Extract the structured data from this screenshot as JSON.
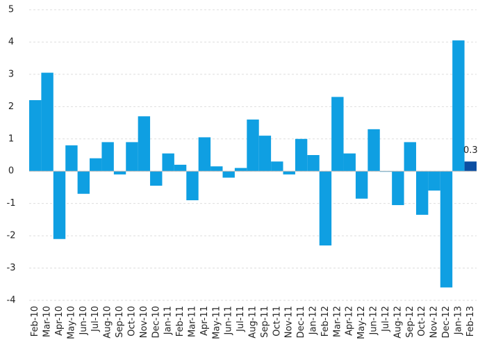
{
  "chart_data": {
    "type": "bar",
    "categories": [
      "Feb-10",
      "Mar-10",
      "Apr-10",
      "May-10",
      "Jun-10",
      "Jul-10",
      "Aug-10",
      "Sep-10",
      "Oct-10",
      "Nov-10",
      "Dec-10",
      "Jan-11",
      "Feb-11",
      "Mar-11",
      "Apr-11",
      "May-11",
      "Jun-11",
      "Jul-11",
      "Aug-11",
      "Sep-11",
      "Oct-11",
      "Nov-11",
      "Dec-11",
      "Jan-12",
      "Feb-12",
      "Mar-12",
      "Apr-12",
      "May-12",
      "Jun-12",
      "Jul-12",
      "Aug-12",
      "Sep-12",
      "Oct-12",
      "Nov-12",
      "Dec-12",
      "Jan-13",
      "Feb-13"
    ],
    "values": [
      2.2,
      3.05,
      -2.1,
      0.8,
      -0.7,
      0.4,
      0.9,
      -0.1,
      0.9,
      1.7,
      -0.45,
      0.55,
      0.2,
      -0.9,
      1.05,
      0.15,
      -0.2,
      0.1,
      1.6,
      1.1,
      0.3,
      -0.1,
      1.0,
      0.5,
      -2.3,
      2.3,
      0.55,
      -0.85,
      1.3,
      -0.02,
      -1.05,
      0.9,
      -1.35,
      -0.6,
      -3.6,
      4.05,
      0.3
    ],
    "value_labels": [
      null,
      null,
      null,
      null,
      null,
      null,
      null,
      null,
      null,
      null,
      null,
      null,
      null,
      null,
      null,
      null,
      null,
      null,
      null,
      null,
      null,
      null,
      null,
      null,
      null,
      null,
      null,
      null,
      null,
      null,
      null,
      null,
      null,
      null,
      null,
      null,
      "0.3"
    ],
    "colors": [
      "#0f9fe2",
      "#0f9fe2",
      "#0f9fe2",
      "#0f9fe2",
      "#0f9fe2",
      "#0f9fe2",
      "#0f9fe2",
      "#0f9fe2",
      "#0f9fe2",
      "#0f9fe2",
      "#0f9fe2",
      "#0f9fe2",
      "#0f9fe2",
      "#0f9fe2",
      "#0f9fe2",
      "#0f9fe2",
      "#0f9fe2",
      "#0f9fe2",
      "#0f9fe2",
      "#0f9fe2",
      "#0f9fe2",
      "#0f9fe2",
      "#0f9fe2",
      "#0f9fe2",
      "#0f9fe2",
      "#0f9fe2",
      "#0f9fe2",
      "#0f9fe2",
      "#0f9fe2",
      "#0f9fe2",
      "#0f9fe2",
      "#0f9fe2",
      "#0f9fe2",
      "#0f9fe2",
      "#0f9fe2",
      "#0f9fe2",
      "#0b4ea2"
    ],
    "ylim": [
      -4,
      5
    ],
    "yticks": [
      -4,
      -3,
      -2,
      -1,
      0,
      1,
      2,
      3,
      4,
      5
    ],
    "grid": true
  }
}
